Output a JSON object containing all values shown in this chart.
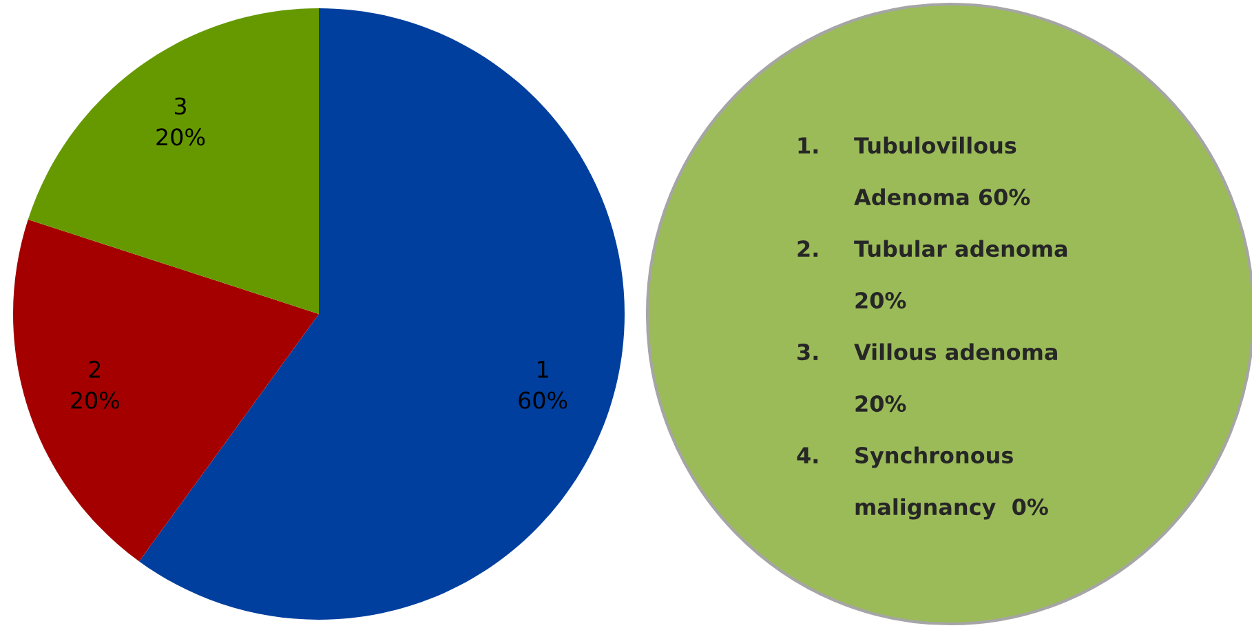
{
  "chart_data": {
    "type": "pie",
    "categories": [
      "1",
      "2",
      "3"
    ],
    "values": [
      60,
      20,
      20
    ],
    "colors": [
      "#003f9e",
      "#a50000",
      "#669900"
    ],
    "value_labels": [
      "60%",
      "20%",
      "20%"
    ],
    "annotations": [
      "1. Tubulovillous\nAdenoma 60%",
      "2. Tubular adenoma\n20%",
      "3. Villous adenoma\n20%",
      "4. Synchronous\nmalignancy  0%"
    ]
  }
}
